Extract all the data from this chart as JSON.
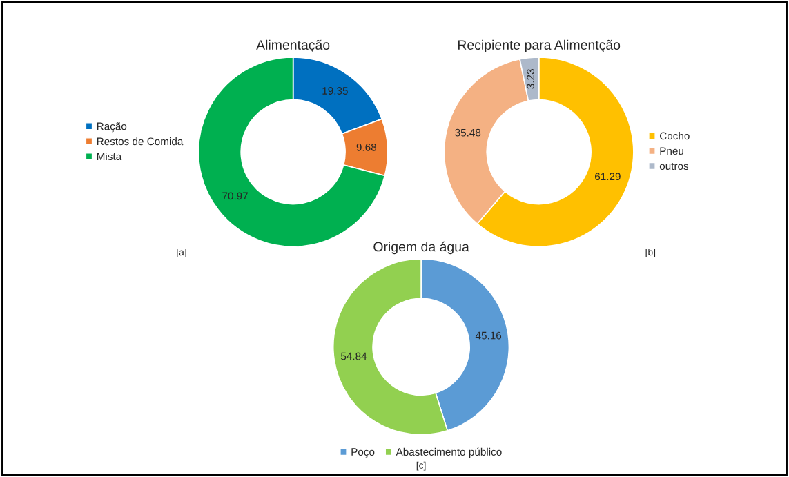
{
  "chart_data": [
    {
      "type": "donut",
      "title": "Alimentação",
      "categories": [
        "Ração",
        "Restos de Comida",
        "Mista"
      ],
      "values": [
        19.35,
        9.68,
        70.97
      ],
      "colors": [
        "#0070c0",
        "#ed7d31",
        "#00b050"
      ],
      "data_labels": true,
      "legend": "left",
      "annotations": [
        "[a]"
      ]
    },
    {
      "type": "donut",
      "title": "Recipiente para Alimentção",
      "categories": [
        "Cocho",
        "Pneu",
        "outros"
      ],
      "values": [
        61.29,
        35.48,
        3.23
      ],
      "colors": [
        "#ffc000",
        "#f4b183",
        "#adb9ca"
      ],
      "data_labels": true,
      "legend": "right",
      "annotations": [
        "[b]"
      ]
    },
    {
      "type": "donut",
      "title": "Origem da água",
      "categories": [
        "Poço",
        "Abastecimento público"
      ],
      "values": [
        45.16,
        54.84
      ],
      "colors": [
        "#5b9bd5",
        "#92d050"
      ],
      "data_labels": true,
      "legend": "bottom",
      "annotations": [
        "[c]"
      ]
    }
  ]
}
